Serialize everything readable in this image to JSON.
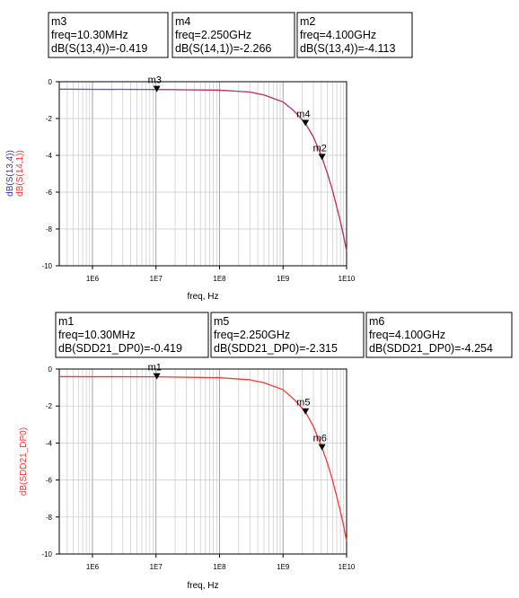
{
  "chart_data": [
    {
      "type": "line",
      "xlabel": "freq, Hz",
      "ylabel_parts": [
        {
          "text": "dB(S(13,4))",
          "color": "#3333cc"
        },
        {
          "text": "dB(S(14,1))",
          "color": "#ff3333"
        }
      ],
      "xscale": "log",
      "xlim": [
        300000.0,
        10000000000.0
      ],
      "ylim": [
        -10,
        0
      ],
      "xticks": [
        {
          "value": 1000000.0,
          "label": "1E6"
        },
        {
          "value": 10000000.0,
          "label": "1E7"
        },
        {
          "value": 100000000.0,
          "label": "1E8"
        },
        {
          "value": 1000000000.0,
          "label": "1E9"
        },
        {
          "value": 10000000000.0,
          "label": "1E10"
        }
      ],
      "yticks": [
        0,
        -2,
        -4,
        -6,
        -8,
        -10
      ],
      "grid": true,
      "series": [
        {
          "name": "dB(S(13,4))",
          "color": "#3333cc",
          "x": [
            300000.0,
            1000000.0,
            10000000.0,
            100000000.0,
            300000000.0,
            500000000.0,
            1000000000.0,
            1500000000.0,
            2250000000.0,
            3000000000.0,
            4100000000.0,
            5000000000.0,
            6000000000.0,
            7000000000.0,
            8000000000.0,
            9000000000.0,
            10000000000.0
          ],
          "y": [
            -0.41,
            -0.415,
            -0.419,
            -0.46,
            -0.56,
            -0.72,
            -1.1,
            -1.6,
            -2.266,
            -3.0,
            -4.113,
            -5.0,
            -5.9,
            -6.8,
            -7.6,
            -8.4,
            -9.2
          ]
        },
        {
          "name": "dB(S(14,1))",
          "color": "#ff3333",
          "x": [
            300000.0,
            1000000.0,
            10000000.0,
            100000000.0,
            300000000.0,
            500000000.0,
            1000000000.0,
            1500000000.0,
            2250000000.0,
            3000000000.0,
            4100000000.0,
            5000000000.0,
            6000000000.0,
            7000000000.0,
            8000000000.0,
            9000000000.0,
            10000000000.0
          ],
          "y": [
            -0.41,
            -0.415,
            -0.419,
            -0.46,
            -0.56,
            -0.72,
            -1.1,
            -1.6,
            -2.266,
            -3.0,
            -4.113,
            -5.0,
            -5.9,
            -6.8,
            -7.6,
            -8.4,
            -9.2
          ]
        }
      ],
      "markers": [
        {
          "name": "m3",
          "x": 10300000.0,
          "y": -0.419,
          "lines": [
            "m3",
            "freq=10.30MHz",
            "dB(S(13,4))=-0.419"
          ]
        },
        {
          "name": "m4",
          "x": 2250000000.0,
          "y": -2.266,
          "lines": [
            "m4",
            "freq=2.250GHz",
            "dB(S(14,1))=-2.266"
          ]
        },
        {
          "name": "m2",
          "x": 4100000000.0,
          "y": -4.113,
          "lines": [
            "m2",
            "freq=4.100GHz",
            "dB(S(13,4))=-4.113"
          ]
        }
      ]
    },
    {
      "type": "line",
      "xlabel": "freq, Hz",
      "xlabel_color": "#ff3333",
      "ylabel_parts": [
        {
          "text": "dB(SDD21_DP0)",
          "color": "#ff3333"
        }
      ],
      "xscale": "log",
      "xlim": [
        300000.0,
        10000000000.0
      ],
      "ylim": [
        -10,
        0
      ],
      "xticks": [
        {
          "value": 1000000.0,
          "label": "1E6"
        },
        {
          "value": 10000000.0,
          "label": "1E7"
        },
        {
          "value": 100000000.0,
          "label": "1E8"
        },
        {
          "value": 1000000000.0,
          "label": "1E9"
        },
        {
          "value": 10000000000.0,
          "label": "1E10"
        }
      ],
      "yticks": [
        0,
        -2,
        -4,
        -6,
        -8,
        -10
      ],
      "grid": true,
      "series": [
        {
          "name": "dB(SDD21_DP0)",
          "color": "#ff3333",
          "x": [
            300000.0,
            1000000.0,
            10000000.0,
            100000000.0,
            300000000.0,
            500000000.0,
            1000000000.0,
            1500000000.0,
            2250000000.0,
            3000000000.0,
            4100000000.0,
            5000000000.0,
            6000000000.0,
            7000000000.0,
            8000000000.0,
            9000000000.0,
            10000000000.0
          ],
          "y": [
            -0.41,
            -0.415,
            -0.419,
            -0.47,
            -0.58,
            -0.74,
            -1.12,
            -1.65,
            -2.315,
            -3.1,
            -4.254,
            -5.1,
            -6.0,
            -6.9,
            -7.7,
            -8.5,
            -9.3
          ]
        }
      ],
      "markers": [
        {
          "name": "m1",
          "x": 10300000.0,
          "y": -0.419,
          "lines": [
            "m1",
            "freq=10.30MHz",
            "dB(SDD21_DP0)=-0.419"
          ]
        },
        {
          "name": "m5",
          "x": 2250000000.0,
          "y": -2.315,
          "lines": [
            "m5",
            "freq=2.250GHz",
            "dB(SDD21_DP0)=-2.315"
          ]
        },
        {
          "name": "m6",
          "x": 4100000000.0,
          "y": -4.254,
          "lines": [
            "m6",
            "freq=4.100GHz",
            "dB(SDD21_DP0)=-4.254"
          ]
        }
      ]
    }
  ]
}
